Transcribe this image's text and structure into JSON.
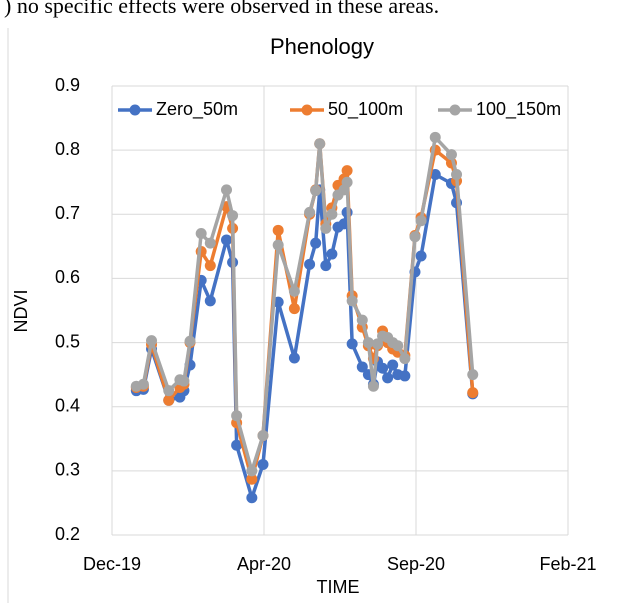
{
  "page_text": ") no specific effects were observed in these areas.",
  "chart_data": {
    "type": "line",
    "title": "Phenology",
    "x_label": "TIME",
    "y_label": "NDVI",
    "x": [
      43824,
      43831,
      43839,
      43856,
      43867,
      43871,
      43877,
      43888,
      43897,
      43913,
      43919,
      43923,
      43938,
      43949,
      43964,
      43980,
      43995,
      44001,
      44005,
      44011,
      44017,
      44023,
      44029,
      44032,
      44037,
      44047,
      44053,
      44058,
      44062,
      44067,
      44072,
      44077,
      44082,
      44089,
      44099,
      44105,
      44119,
      44135,
      44140,
      44156
    ],
    "series": [
      {
        "name": "Zero_50m",
        "color": "#4472c4",
        "values": [
          0.425,
          0.427,
          0.49,
          0.41,
          0.415,
          0.425,
          0.465,
          0.597,
          0.565,
          0.66,
          0.625,
          0.34,
          0.258,
          0.31,
          0.563,
          0.476,
          0.622,
          0.655,
          0.738,
          0.62,
          0.638,
          0.68,
          0.685,
          0.703,
          0.498,
          0.462,
          0.45,
          0.435,
          0.47,
          0.46,
          0.445,
          0.465,
          0.45,
          0.448,
          0.61,
          0.635,
          0.762,
          0.748,
          0.718,
          0.42
        ]
      },
      {
        "name": "50_100m",
        "color": "#ed7d31",
        "values": [
          0.43,
          0.432,
          0.497,
          0.41,
          0.43,
          0.435,
          0.5,
          0.642,
          0.62,
          0.712,
          0.678,
          0.375,
          0.287,
          0.355,
          0.675,
          0.553,
          0.7,
          0.738,
          0.81,
          0.685,
          0.71,
          0.745,
          0.755,
          0.768,
          0.573,
          0.524,
          0.495,
          0.475,
          0.495,
          0.518,
          0.5,
          0.49,
          0.485,
          0.48,
          0.667,
          0.695,
          0.8,
          0.78,
          0.752,
          0.422
        ]
      },
      {
        "name": "100_150m",
        "color": "#a5a5a5",
        "values": [
          0.432,
          0.435,
          0.503,
          0.425,
          0.442,
          0.44,
          0.502,
          0.67,
          0.655,
          0.738,
          0.698,
          0.386,
          0.3,
          0.355,
          0.652,
          0.58,
          0.703,
          0.737,
          0.81,
          0.678,
          0.7,
          0.73,
          0.738,
          0.75,
          0.565,
          0.535,
          0.5,
          0.432,
          0.498,
          0.51,
          0.508,
          0.5,
          0.495,
          0.475,
          0.665,
          0.69,
          0.82,
          0.793,
          0.762,
          0.45
        ]
      }
    ],
    "xlim": [
      43800,
      44250
    ],
    "xticks": [
      {
        "value": 43800,
        "label": "Dec-19"
      },
      {
        "value": 43950,
        "label": "Apr-20"
      },
      {
        "value": 44100,
        "label": "Sep-20"
      },
      {
        "value": 44250,
        "label": "Feb-21"
      }
    ],
    "ylim": [
      0.2,
      0.9
    ],
    "yticks": [
      {
        "value": 0.2,
        "label": "0.2"
      },
      {
        "value": 0.3,
        "label": "0.3"
      },
      {
        "value": 0.4,
        "label": "0.4"
      },
      {
        "value": 0.5,
        "label": "0.5"
      },
      {
        "value": 0.6,
        "label": "0.6"
      },
      {
        "value": 0.7,
        "label": "0.7"
      },
      {
        "value": 0.8,
        "label": "0.8"
      },
      {
        "value": 0.9,
        "label": "0.9"
      }
    ],
    "grid": true,
    "legend": "top"
  }
}
